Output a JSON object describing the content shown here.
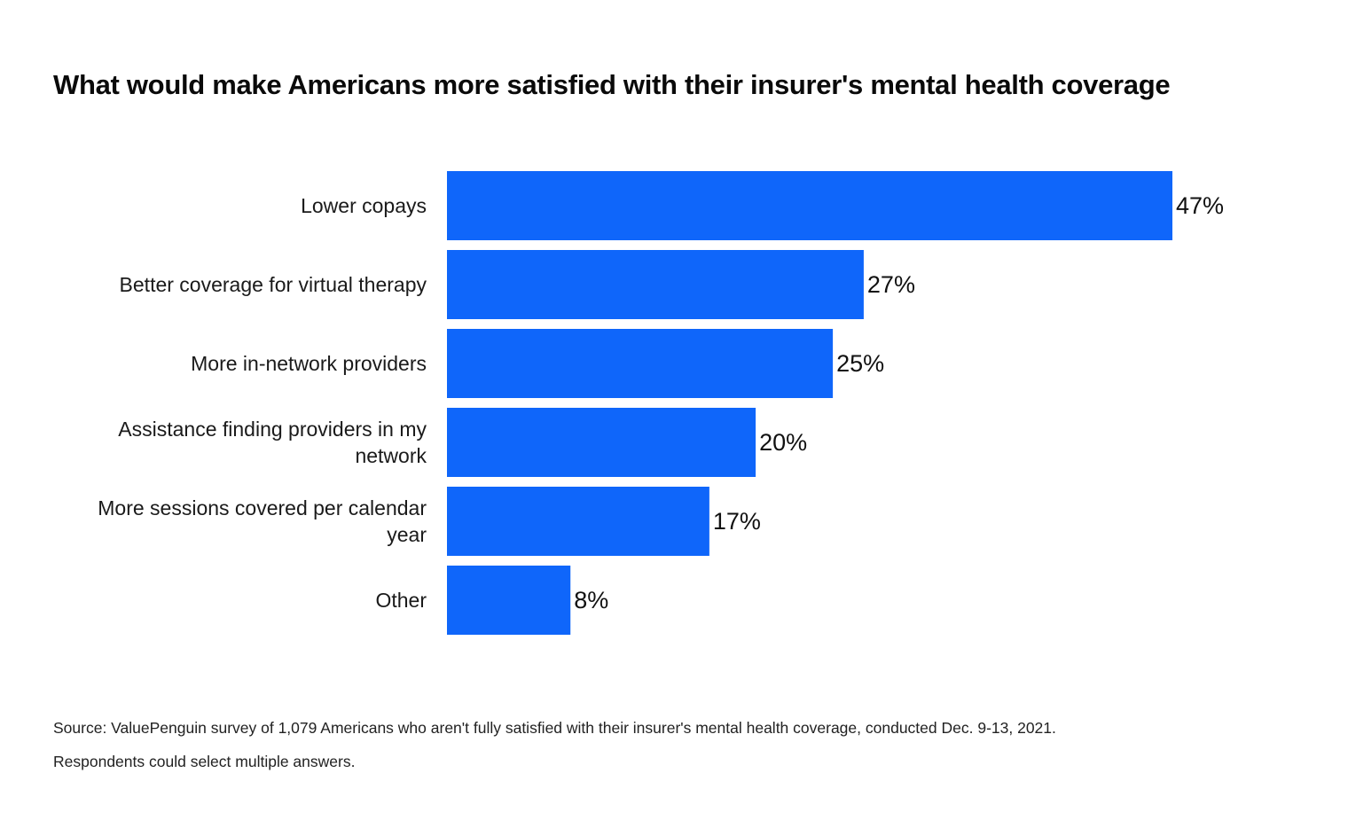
{
  "chart_data": {
    "type": "bar",
    "orientation": "horizontal",
    "title": "What would make Americans more satisfied with their insurer's mental health coverage",
    "categories": [
      "Lower copays",
      "Better coverage for virtual therapy",
      "More in-network providers",
      "Assistance finding providers in my network",
      "More sessions covered per calendar year",
      "Other"
    ],
    "category_lines": [
      [
        "Lower copays"
      ],
      [
        "Better coverage for virtual therapy"
      ],
      [
        "More in-network providers"
      ],
      [
        "Assistance finding providers in my",
        "network"
      ],
      [
        "More sessions covered per calendar",
        "year"
      ],
      [
        "Other"
      ]
    ],
    "values": [
      47,
      27,
      25,
      20,
      17,
      8
    ],
    "value_labels": [
      "47%",
      "27%",
      "25%",
      "20%",
      "17%",
      "8%"
    ],
    "unit": "%",
    "bar_color": "#0f66fa",
    "grid": false,
    "legend": "none",
    "xlim": [
      0,
      47
    ]
  },
  "footnote": {
    "line1": "Source: ValuePenguin survey of 1,079 Americans who aren't fully satisfied with their insurer's mental health coverage, conducted Dec. 9-13, 2021.",
    "line2": "Respondents could select multiple answers."
  }
}
